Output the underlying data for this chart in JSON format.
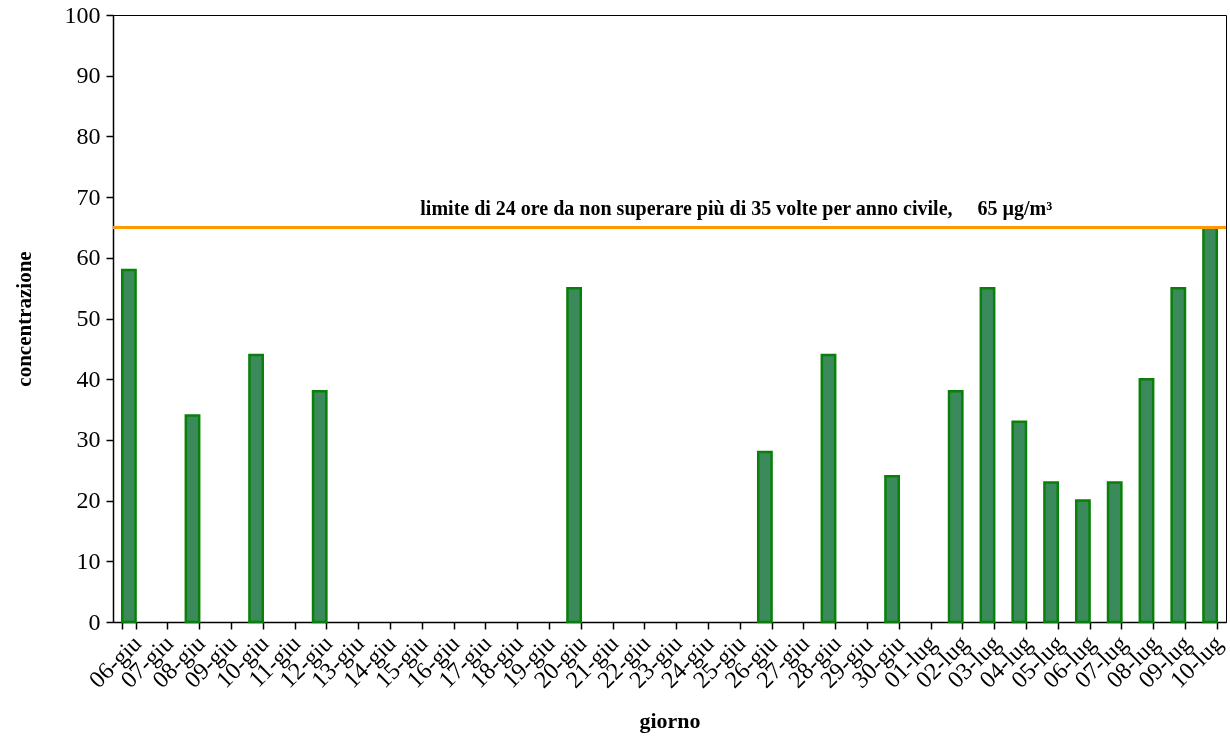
{
  "chart_data": {
    "type": "bar",
    "xlabel": "giorno",
    "ylabel": "concentrazione",
    "categories": [
      "06-giu",
      "07-giu",
      "08-giu",
      "09-giu",
      "10-giu",
      "11-giu",
      "12-giu",
      "13-giu",
      "14-giu",
      "15-giu",
      "16-giu",
      "17-giu",
      "18-giu",
      "19-giu",
      "20-giu",
      "21-giu",
      "22-giu",
      "23-giu",
      "24-giu",
      "25-giu",
      "26-giu",
      "27-giu",
      "28-giu",
      "29-giu",
      "30-giu",
      "01-lug",
      "02-lug",
      "03-lug",
      "04-lug",
      "05-lug",
      "06-lug",
      "07-lug",
      "08-lug",
      "09-lug",
      "10-lug"
    ],
    "values": [
      58,
      null,
      34,
      null,
      44,
      null,
      38,
      null,
      null,
      null,
      null,
      null,
      null,
      null,
      55,
      null,
      null,
      null,
      null,
      null,
      28,
      null,
      44,
      null,
      24,
      null,
      38,
      55,
      33,
      23,
      20,
      23,
      40,
      55,
      65
    ],
    "color": "#3a8a5c",
    "ylim": [
      0,
      100
    ],
    "yticks": [
      0,
      10,
      20,
      30,
      40,
      50,
      60,
      70,
      80,
      90,
      100
    ],
    "ref_lines": [
      {
        "axis": "y",
        "value": 65,
        "label": "limite di 24 ore da non superare più di 35 volte per anno civile,     65 µg/m³",
        "color": "#ff9900"
      }
    ]
  }
}
